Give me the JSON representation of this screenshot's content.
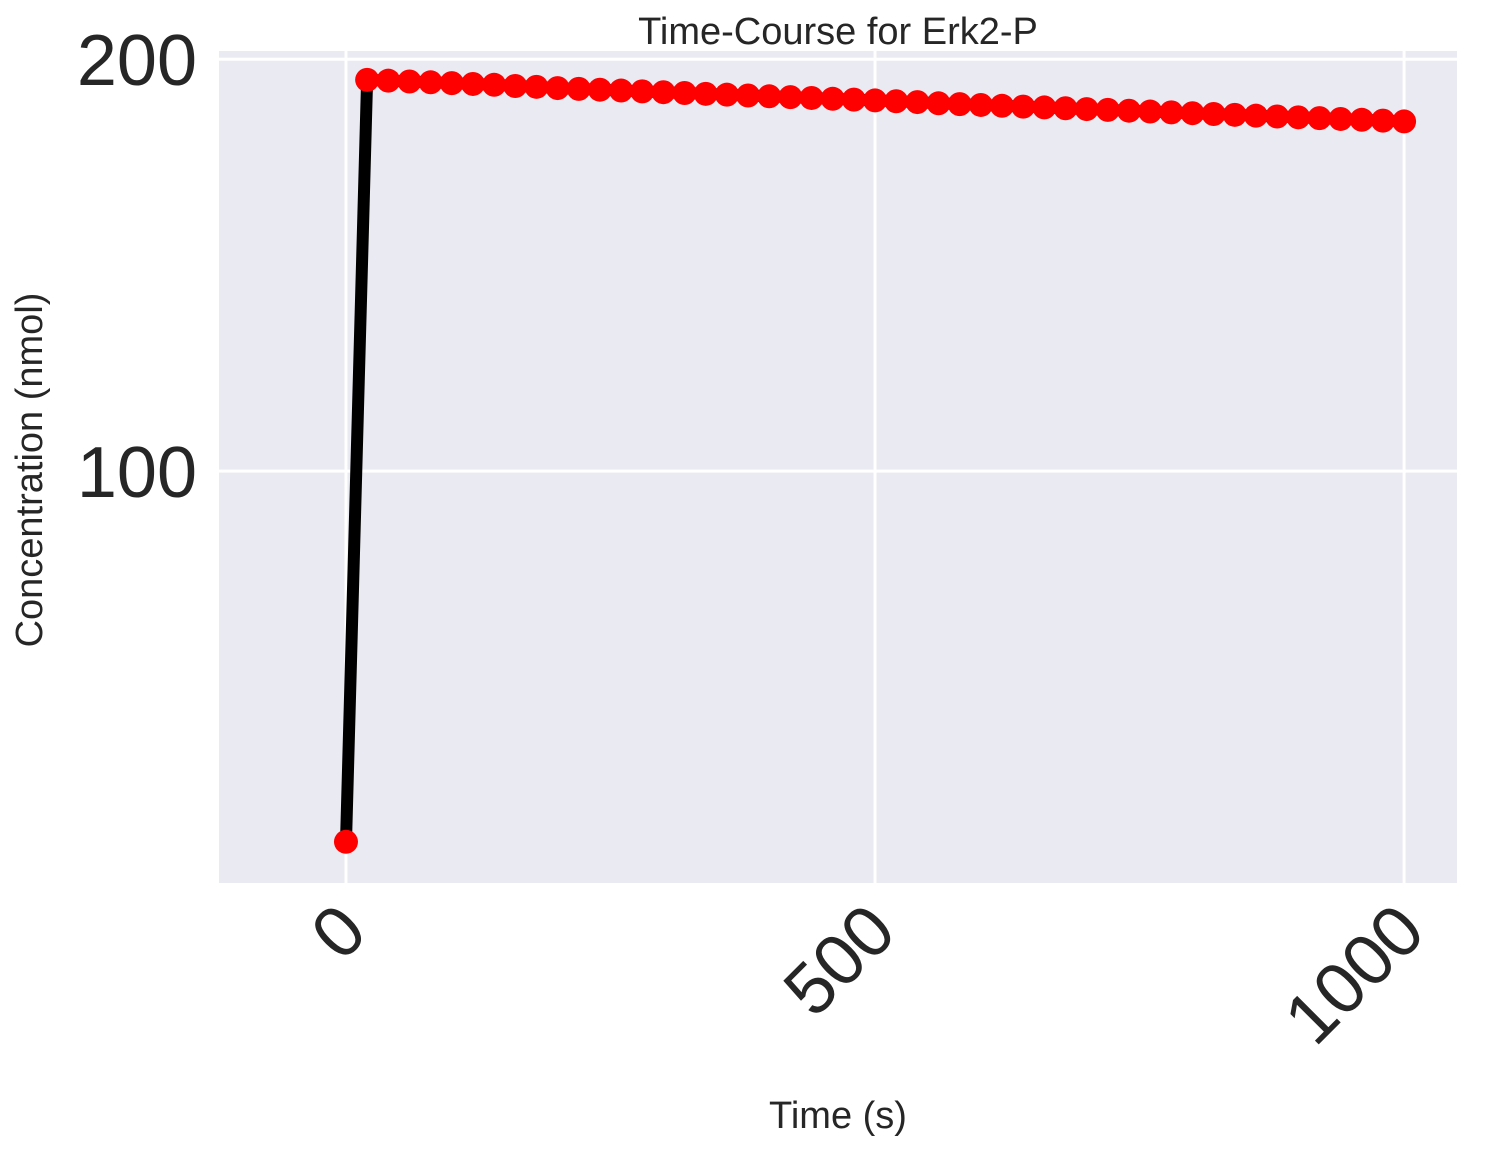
{
  "chart_data": {
    "type": "line",
    "title": "Time-Course for Erk2-P",
    "xlabel": "Time (s)",
    "ylabel": "Concentration (nmol)",
    "xlim": [
      -120,
      1050
    ],
    "ylim": [
      0,
      202
    ],
    "xticks": [
      0,
      500,
      1000
    ],
    "yticks": [
      100,
      200
    ],
    "grid": true,
    "legend": "none",
    "colors": {
      "background": "#EAEAF2",
      "grid": "#FFFFFF",
      "line": "#000000",
      "marker": "#FF0000",
      "text": "#262626"
    },
    "series": [
      {
        "x": [
          0,
          20,
          40,
          60,
          80,
          100,
          120,
          140,
          160,
          180,
          200,
          220,
          240,
          260,
          280,
          300,
          320,
          340,
          360,
          380,
          400,
          420,
          440,
          460,
          480,
          500,
          520,
          540,
          560,
          580,
          600,
          620,
          640,
          660,
          680,
          700,
          720,
          740,
          760,
          780,
          800,
          820,
          840,
          860,
          880,
          900,
          920,
          940,
          960,
          980,
          1000
        ],
        "y": [
          10,
          195,
          194.8,
          194.6,
          194.4,
          194.2,
          194,
          193.8,
          193.5,
          193.3,
          193,
          192.8,
          192.6,
          192.4,
          192.2,
          192,
          191.8,
          191.6,
          191.4,
          191.2,
          191,
          190.8,
          190.6,
          190.4,
          190.2,
          190,
          189.8,
          189.6,
          189.3,
          189.1,
          188.9,
          188.7,
          188.5,
          188.3,
          188.1,
          187.9,
          187.7,
          187.5,
          187.3,
          187.1,
          186.9,
          186.7,
          186.5,
          186.3,
          186.1,
          185.9,
          185.7,
          185.5,
          185.3,
          185.1,
          184.9
        ]
      }
    ]
  }
}
